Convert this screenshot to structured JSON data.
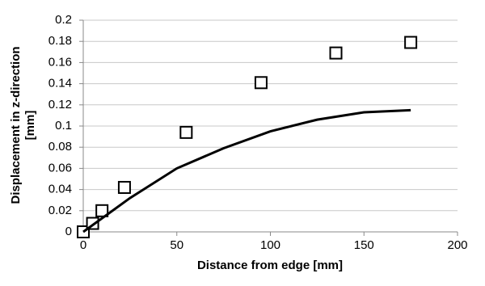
{
  "chart_data": {
    "type": "scatter",
    "x_label": "Distance from edge [mm]",
    "y_label": [
      "Displacement in z-direction",
      "[mm]"
    ],
    "series": [
      {
        "kind": "scatter",
        "marker": "square",
        "color": "#000000",
        "x": [
          0,
          5,
          10,
          22,
          55,
          95,
          135,
          175
        ],
        "values": [
          0,
          0.008,
          0.02,
          0.042,
          0.094,
          0.141,
          0.169,
          0.179
        ]
      },
      {
        "kind": "line",
        "color": "#000000",
        "x": [
          0,
          25,
          50,
          75,
          100,
          125,
          150,
          175
        ],
        "values": [
          0,
          0.032,
          0.06,
          0.079,
          0.095,
          0.106,
          0.113,
          0.115
        ]
      }
    ],
    "xlim": [
      0,
      200
    ],
    "xticks": [
      0,
      50,
      100,
      150,
      200
    ],
    "ylim": [
      0,
      0.2
    ],
    "yticks": [
      0,
      0.02,
      0.04,
      0.06,
      0.08,
      0.1,
      0.12,
      0.14,
      0.16,
      0.18,
      0.2
    ],
    "grid": true
  }
}
